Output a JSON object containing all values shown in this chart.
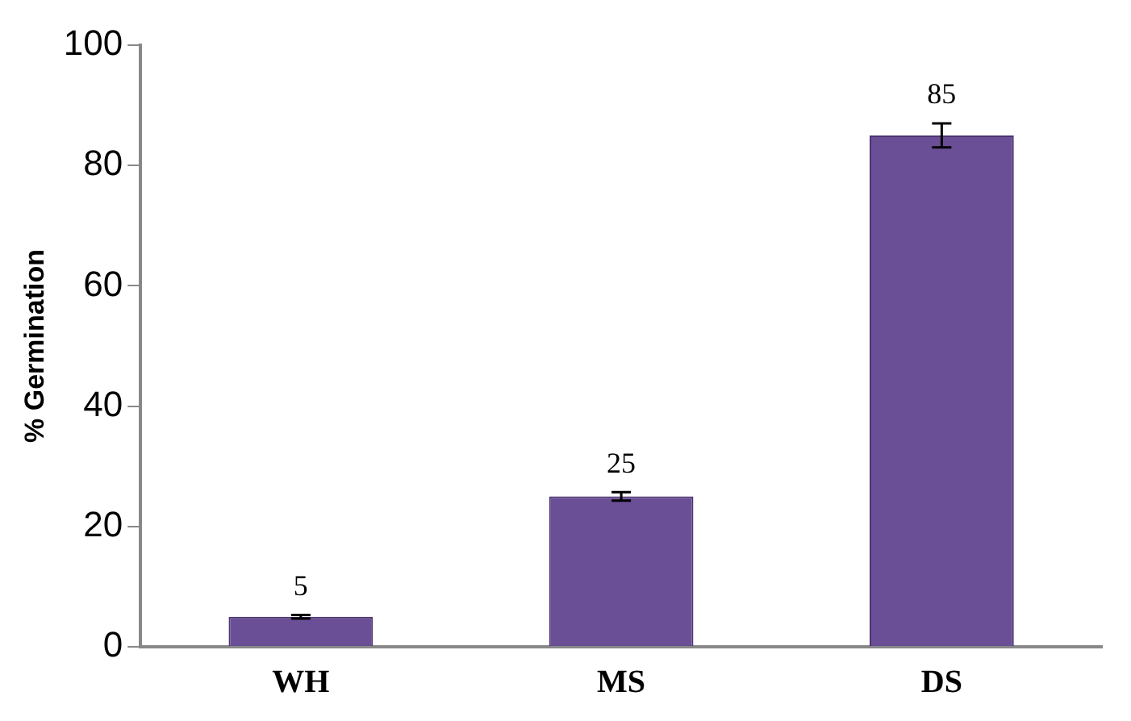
{
  "chart_data": {
    "type": "bar",
    "ylabel": "% Germination",
    "categories": [
      "WH",
      "MS",
      "DS"
    ],
    "values": [
      5,
      25,
      85
    ],
    "errors": [
      0.3,
      0.7,
      2
    ],
    "color": "#6a4f96",
    "ylim": [
      0,
      100
    ],
    "yticks": [
      0,
      20,
      40,
      60,
      80,
      100
    ],
    "grid": false,
    "data_labels": true,
    "legend": false
  }
}
